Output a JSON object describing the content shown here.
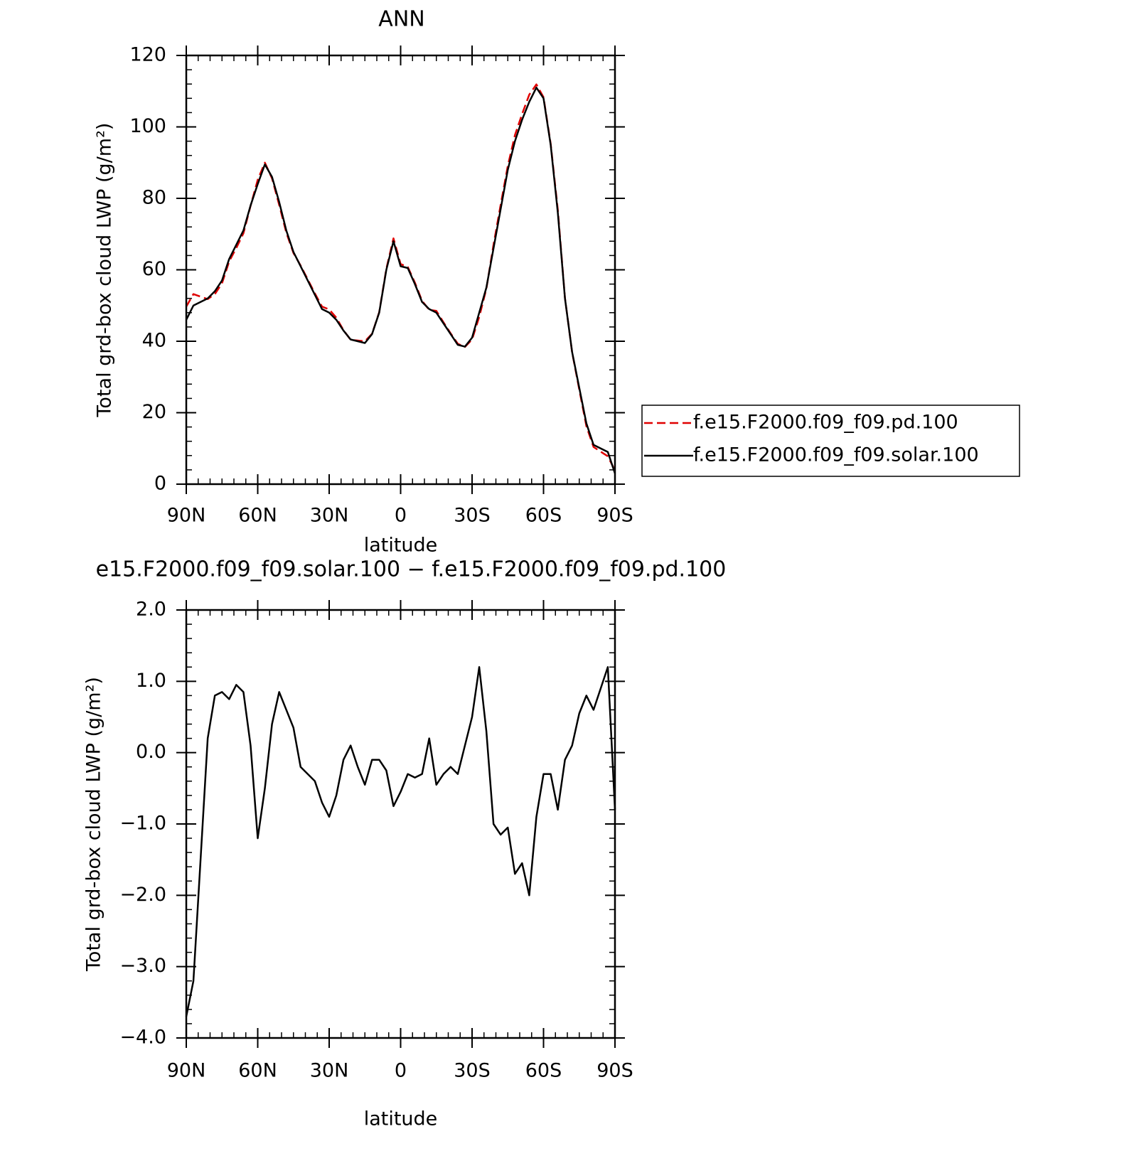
{
  "chart_data": [
    {
      "type": "line",
      "title": "ANN",
      "x_label": "latitude",
      "y_label": "Total grd-box cloud LWP (g/m²)",
      "x": [
        90,
        87,
        84,
        81,
        78,
        75,
        72,
        69,
        66,
        63,
        60,
        57,
        54,
        51,
        48,
        45,
        42,
        39,
        36,
        33,
        30,
        27,
        24,
        21,
        18,
        15,
        12,
        9,
        6,
        3,
        0,
        -3,
        -6,
        -9,
        -12,
        -15,
        -18,
        -21,
        -24,
        -27,
        -30,
        -33,
        -36,
        -39,
        -42,
        -45,
        -48,
        -51,
        -54,
        -57,
        -60,
        -63,
        -66,
        -69,
        -72,
        -75,
        -78,
        -81,
        -84,
        -87,
        -90
      ],
      "series": [
        {
          "name": "f.e15.F2000.f09_f09.pd.100",
          "color": "#e00000",
          "dashed": true,
          "values": [
            49.7,
            53.2,
            52.5,
            51.8,
            53.2,
            56.2,
            62.3,
            66.1,
            70.2,
            77.9,
            85.2,
            90,
            85.6,
            78.2,
            70.4,
            64.7,
            61.2,
            57.3,
            53.4,
            49.7,
            48.9,
            46.6,
            43.1,
            40.4,
            40.2,
            40,
            42.1,
            48.1,
            60.3,
            68.8,
            61.6,
            60.8,
            56.4,
            51.3,
            48.8,
            48.5,
            45.3,
            42.2,
            39.3,
            38.4,
            40.5,
            46.8,
            54.7,
            67,
            78.2,
            89.1,
            97.7,
            103.6,
            109,
            111.9,
            108.3,
            95.3,
            76.8,
            52.1,
            36.9,
            26.5,
            16.2,
            10.4,
            9.1,
            7.8,
            3.8
          ]
        },
        {
          "name": "f.e15.F2000.f09_f09.solar.100",
          "color": "#000000",
          "dashed": false,
          "values": [
            46,
            50,
            51,
            52,
            54,
            57,
            63,
            67,
            71,
            78,
            84,
            89.5,
            86,
            79,
            71,
            65,
            61,
            57,
            53,
            49,
            48,
            46,
            43,
            40.5,
            40,
            39.5,
            42,
            48,
            60,
            68,
            61,
            60.5,
            56,
            51,
            49,
            48,
            45,
            42,
            39,
            38.5,
            41,
            48,
            55,
            66,
            77,
            88,
            96,
            102,
            107,
            111,
            108,
            95,
            76,
            52,
            37,
            27,
            17,
            11,
            10,
            9,
            3
          ]
        }
      ],
      "xlim": [
        90,
        -90
      ],
      "xticks": [
        {
          "value": 90,
          "label": "90N"
        },
        {
          "value": 60,
          "label": "60N"
        },
        {
          "value": 30,
          "label": "30N"
        },
        0,
        {
          "value": -30,
          "label": "30S"
        },
        {
          "value": -60,
          "label": "60S"
        },
        {
          "value": -90,
          "label": "90S"
        }
      ],
      "ylim": [
        0,
        120
      ],
      "yticks": [
        0,
        20,
        40,
        60,
        80,
        100,
        120
      ],
      "legend": "right"
    },
    {
      "type": "line",
      "title": "e15.F2000.f09_f09.solar.100 − f.e15.F2000.f09_f09.pd.100",
      "x_label": "latitude",
      "y_label": "Total grd-box cloud LWP (g/m²)",
      "x": [
        90,
        87,
        84,
        81,
        78,
        75,
        72,
        69,
        66,
        63,
        60,
        57,
        54,
        51,
        48,
        45,
        42,
        39,
        36,
        33,
        30,
        27,
        24,
        21,
        18,
        15,
        12,
        9,
        6,
        3,
        0,
        -3,
        -6,
        -9,
        -12,
        -15,
        -18,
        -21,
        -24,
        -27,
        -30,
        -33,
        -36,
        -39,
        -42,
        -45,
        -48,
        -51,
        -54,
        -57,
        -60,
        -63,
        -66,
        -69,
        -72,
        -75,
        -78,
        -81,
        -84,
        -87,
        -90
      ],
      "series": [
        {
          "color": "#000000",
          "dashed": false,
          "values": [
            -3.7,
            -3.2,
            -1.5,
            0.2,
            0.8,
            0.85,
            0.75,
            0.95,
            0.85,
            0.1,
            -1.2,
            -0.5,
            0.4,
            0.85,
            0.6,
            0.35,
            -0.2,
            -0.3,
            -0.4,
            -0.7,
            -0.9,
            -0.6,
            -0.1,
            0.1,
            -0.2,
            -0.45,
            -0.1,
            -0.1,
            -0.25,
            -0.75,
            -0.55,
            -0.3,
            -0.35,
            -0.3,
            0.2,
            -0.45,
            -0.3,
            -0.2,
            -0.3,
            0.1,
            0.5,
            1.2,
            0.3,
            -1.0,
            -1.15,
            -1.05,
            -1.7,
            -1.55,
            -2.0,
            -0.9,
            -0.3,
            -0.3,
            -0.8,
            -0.1,
            0.1,
            0.55,
            0.8,
            0.6,
            0.9,
            1.2,
            -0.8
          ]
        }
      ],
      "xlim": [
        90,
        -90
      ],
      "xticks": [
        {
          "value": 90,
          "label": "90N"
        },
        {
          "value": 60,
          "label": "60N"
        },
        {
          "value": 30,
          "label": "30N"
        },
        0,
        {
          "value": -30,
          "label": "30S"
        },
        {
          "value": -60,
          "label": "60S"
        },
        {
          "value": -90,
          "label": "90S"
        }
      ],
      "ylim": [
        -4,
        2
      ],
      "yticks": [
        {
          "value": -4,
          "label": "−4.0"
        },
        {
          "value": -3,
          "label": "−3.0"
        },
        {
          "value": -2,
          "label": "−2.0"
        },
        {
          "value": -1,
          "label": "−1.0"
        },
        {
          "value": 0,
          "label": "0.0"
        },
        {
          "value": 1,
          "label": "1.0"
        },
        {
          "value": 2,
          "label": "2.0"
        }
      ]
    }
  ]
}
